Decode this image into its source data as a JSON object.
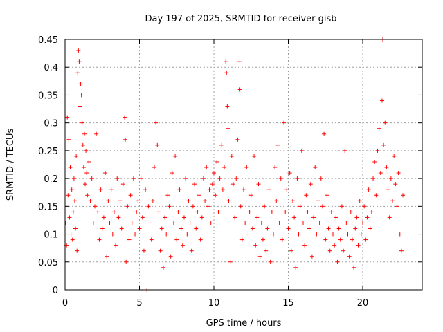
{
  "chart_data": {
    "type": "scatter",
    "title": "Day 197 of 2025, SRMTID for receiver gisb",
    "xlabel": "GPS time / hours",
    "ylabel": "SRMTID / TECUs",
    "xlim": [
      0,
      24
    ],
    "ylim": [
      0,
      0.45
    ],
    "xticks": [
      "0",
      "5",
      "10",
      "15",
      "20"
    ],
    "yticks": [
      "0",
      "0.05",
      "0.1",
      "0.15",
      "0.2",
      "0.25",
      "0.3",
      "0.35",
      "0.4",
      "0.45"
    ],
    "grid": true,
    "marker": "+",
    "color": "#ff0000",
    "series": [
      {
        "name": "SRMTID",
        "points": [
          [
            0.05,
            0.12
          ],
          [
            0.1,
            0.08
          ],
          [
            0.15,
            0.31
          ],
          [
            0.2,
            0.17
          ],
          [
            0.25,
            0.27
          ],
          [
            0.3,
            0.13
          ],
          [
            0.35,
            0.22
          ],
          [
            0.4,
            0.1
          ],
          [
            0.45,
            0.18
          ],
          [
            0.5,
            0.09
          ],
          [
            0.55,
            0.14
          ],
          [
            0.6,
            0.2
          ],
          [
            0.65,
            0.16
          ],
          [
            0.7,
            0.11
          ],
          [
            0.75,
            0.24
          ],
          [
            0.8,
            0.07
          ],
          [
            0.85,
            0.39
          ],
          [
            0.9,
            0.43
          ],
          [
            0.95,
            0.41
          ],
          [
            1.0,
            0.33
          ],
          [
            1.05,
            0.37
          ],
          [
            1.1,
            0.35
          ],
          [
            1.15,
            0.3
          ],
          [
            1.2,
            0.26
          ],
          [
            1.25,
            0.22
          ],
          [
            1.3,
            0.28
          ],
          [
            1.35,
            0.19
          ],
          [
            1.4,
            0.25
          ],
          [
            1.45,
            0.21
          ],
          [
            1.5,
            0.17
          ],
          [
            1.6,
            0.23
          ],
          [
            1.7,
            0.16
          ],
          [
            1.8,
            0.2
          ],
          [
            1.9,
            0.12
          ],
          [
            2.0,
            0.15
          ],
          [
            2.1,
            0.28
          ],
          [
            2.2,
            0.14
          ],
          [
            2.3,
            0.09
          ],
          [
            2.4,
            0.18
          ],
          [
            2.5,
            0.11
          ],
          [
            2.6,
            0.13
          ],
          [
            2.7,
            0.21
          ],
          [
            2.8,
            0.06
          ],
          [
            2.9,
            0.16
          ],
          [
            3.0,
            0.12
          ],
          [
            3.1,
            0.18
          ],
          [
            3.2,
            0.1
          ],
          [
            3.3,
            0.14
          ],
          [
            3.4,
            0.08
          ],
          [
            3.5,
            0.2
          ],
          [
            3.6,
            0.13
          ],
          [
            3.7,
            0.16
          ],
          [
            3.8,
            0.11
          ],
          [
            3.9,
            0.19
          ],
          [
            4.0,
            0.31
          ],
          [
            4.05,
            0.27
          ],
          [
            4.1,
            0.05
          ],
          [
            4.2,
            0.15
          ],
          [
            4.3,
            0.09
          ],
          [
            4.4,
            0.17
          ],
          [
            4.5,
            0.12
          ],
          [
            4.6,
            0.2
          ],
          [
            4.7,
            0.1
          ],
          [
            4.8,
            0.14
          ],
          [
            4.9,
            0.16
          ],
          [
            5.0,
            0.11
          ],
          [
            5.1,
            0.2
          ],
          [
            5.2,
            0.13
          ],
          [
            5.3,
            0.07
          ],
          [
            5.4,
            0.18
          ],
          [
            5.5,
            0.0
          ],
          [
            5.6,
            0.15
          ],
          [
            5.7,
            0.12
          ],
          [
            5.8,
            0.09
          ],
          [
            5.9,
            0.16
          ],
          [
            6.0,
            0.22
          ],
          [
            6.1,
            0.3
          ],
          [
            6.2,
            0.26
          ],
          [
            6.3,
            0.14
          ],
          [
            6.4,
            0.07
          ],
          [
            6.5,
            0.11
          ],
          [
            6.6,
            0.04
          ],
          [
            6.7,
            0.13
          ],
          [
            6.8,
            0.1
          ],
          [
            6.9,
            0.17
          ],
          [
            7.0,
            0.15
          ],
          [
            7.1,
            0.06
          ],
          [
            7.2,
            0.21
          ],
          [
            7.3,
            0.12
          ],
          [
            7.4,
            0.24
          ],
          [
            7.5,
            0.09
          ],
          [
            7.6,
            0.14
          ],
          [
            7.7,
            0.18
          ],
          [
            7.8,
            0.11
          ],
          [
            7.9,
            0.08
          ],
          [
            8.0,
            0.13
          ],
          [
            8.1,
            0.2
          ],
          [
            8.2,
            0.1
          ],
          [
            8.3,
            0.16
          ],
          [
            8.4,
            0.12
          ],
          [
            8.5,
            0.07
          ],
          [
            8.6,
            0.15
          ],
          [
            8.7,
            0.19
          ],
          [
            8.8,
            0.11
          ],
          [
            8.9,
            0.14
          ],
          [
            9.0,
            0.17
          ],
          [
            9.1,
            0.09
          ],
          [
            9.2,
            0.13
          ],
          [
            9.3,
            0.2
          ],
          [
            9.4,
            0.16
          ],
          [
            9.5,
            0.22
          ],
          [
            9.6,
            0.15
          ],
          [
            9.7,
            0.18
          ],
          [
            9.8,
            0.12
          ],
          [
            9.9,
            0.19
          ],
          [
            10.0,
            0.21
          ],
          [
            10.1,
            0.17
          ],
          [
            10.2,
            0.23
          ],
          [
            10.3,
            0.14
          ],
          [
            10.4,
            0.2
          ],
          [
            10.5,
            0.26
          ],
          [
            10.6,
            0.18
          ],
          [
            10.7,
            0.22
          ],
          [
            10.8,
            0.41
          ],
          [
            10.85,
            0.39
          ],
          [
            10.9,
            0.33
          ],
          [
            10.95,
            0.29
          ],
          [
            11.0,
            0.16
          ],
          [
            11.1,
            0.05
          ],
          [
            11.2,
            0.24
          ],
          [
            11.3,
            0.19
          ],
          [
            11.4,
            0.13
          ],
          [
            11.5,
            0.2
          ],
          [
            11.6,
            0.27
          ],
          [
            11.7,
            0.41
          ],
          [
            11.75,
            0.36
          ],
          [
            11.8,
            0.15
          ],
          [
            11.9,
            0.09
          ],
          [
            12.0,
            0.18
          ],
          [
            12.1,
            0.12
          ],
          [
            12.2,
            0.22
          ],
          [
            12.3,
            0.1
          ],
          [
            12.4,
            0.14
          ],
          [
            12.5,
            0.17
          ],
          [
            12.6,
            0.11
          ],
          [
            12.7,
            0.24
          ],
          [
            12.8,
            0.08
          ],
          [
            12.9,
            0.13
          ],
          [
            13.0,
            0.19
          ],
          [
            13.1,
            0.06
          ],
          [
            13.2,
            0.12
          ],
          [
            13.3,
            0.09
          ],
          [
            13.4,
            0.15
          ],
          [
            13.5,
            0.07
          ],
          [
            13.6,
            0.11
          ],
          [
            13.7,
            0.18
          ],
          [
            13.8,
            0.05
          ],
          [
            13.9,
            0.14
          ],
          [
            14.0,
            0.1
          ],
          [
            14.1,
            0.22
          ],
          [
            14.2,
            0.16
          ],
          [
            14.3,
            0.26
          ],
          [
            14.4,
            0.12
          ],
          [
            14.5,
            0.2
          ],
          [
            14.6,
            0.09
          ],
          [
            14.7,
            0.3
          ],
          [
            14.8,
            0.14
          ],
          [
            14.9,
            0.18
          ],
          [
            15.0,
            0.11
          ],
          [
            15.1,
            0.21
          ],
          [
            15.2,
            0.07
          ],
          [
            15.3,
            0.16
          ],
          [
            15.4,
            0.13
          ],
          [
            15.5,
            0.04
          ],
          [
            15.6,
            0.2
          ],
          [
            15.7,
            0.1
          ],
          [
            15.8,
            0.15
          ],
          [
            15.9,
            0.25
          ],
          [
            16.0,
            0.12
          ],
          [
            16.1,
            0.08
          ],
          [
            16.2,
            0.17
          ],
          [
            16.3,
            0.14
          ],
          [
            16.4,
            0.11
          ],
          [
            16.5,
            0.19
          ],
          [
            16.6,
            0.06
          ],
          [
            16.7,
            0.13
          ],
          [
            16.8,
            0.22
          ],
          [
            16.9,
            0.1
          ],
          [
            17.0,
            0.16
          ],
          [
            17.1,
            0.12
          ],
          [
            17.2,
            0.2
          ],
          [
            17.3,
            0.15
          ],
          [
            17.4,
            0.28
          ],
          [
            17.5,
            0.09
          ],
          [
            17.6,
            0.17
          ],
          [
            17.7,
            0.11
          ],
          [
            17.8,
            0.07
          ],
          [
            17.9,
            0.14
          ],
          [
            18.0,
            0.1
          ],
          [
            18.1,
            0.08
          ],
          [
            18.2,
            0.13
          ],
          [
            18.3,
            0.05
          ],
          [
            18.4,
            0.11
          ],
          [
            18.5,
            0.09
          ],
          [
            18.6,
            0.15
          ],
          [
            18.7,
            0.07
          ],
          [
            18.8,
            0.25
          ],
          [
            18.9,
            0.12
          ],
          [
            19.0,
            0.1
          ],
          [
            19.1,
            0.06
          ],
          [
            19.2,
            0.14
          ],
          [
            19.3,
            0.09
          ],
          [
            19.4,
            0.04
          ],
          [
            19.5,
            0.11
          ],
          [
            19.6,
            0.13
          ],
          [
            19.7,
            0.08
          ],
          [
            19.8,
            0.16
          ],
          [
            19.9,
            0.1
          ],
          [
            20.0,
            0.12
          ],
          [
            20.1,
            0.15
          ],
          [
            20.2,
            0.09
          ],
          [
            20.3,
            0.13
          ],
          [
            20.4,
            0.18
          ],
          [
            20.5,
            0.11
          ],
          [
            20.6,
            0.14
          ],
          [
            20.7,
            0.2
          ],
          [
            20.8,
            0.23
          ],
          [
            20.9,
            0.17
          ],
          [
            21.0,
            0.25
          ],
          [
            21.1,
            0.29
          ],
          [
            21.2,
            0.21
          ],
          [
            21.3,
            0.34
          ],
          [
            21.35,
            0.45
          ],
          [
            21.4,
            0.26
          ],
          [
            21.5,
            0.3
          ],
          [
            21.6,
            0.22
          ],
          [
            21.7,
            0.18
          ],
          [
            21.8,
            0.13
          ],
          [
            21.9,
            0.2
          ],
          [
            22.0,
            0.16
          ],
          [
            22.1,
            0.24
          ],
          [
            22.2,
            0.19
          ],
          [
            22.3,
            0.15
          ],
          [
            22.4,
            0.21
          ],
          [
            22.5,
            0.1
          ],
          [
            22.6,
            0.07
          ],
          [
            22.7,
            0.17
          ]
        ]
      }
    ]
  }
}
